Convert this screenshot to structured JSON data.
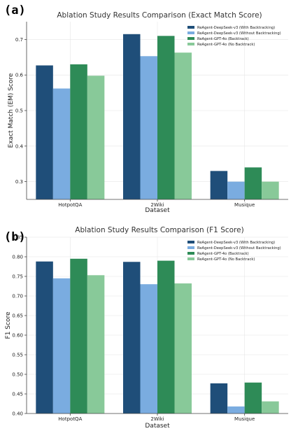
{
  "colors": [
    "#1f4e79",
    "#7aace0",
    "#2e8b57",
    "#88c999"
  ],
  "legend": [
    "ReAgent-DeepSeek-v3 (With Backtracking)",
    "ReAgent-DeepSeek-v3 (Without Backtracking)",
    "ReAgent-GPT-4o (Backtrack)",
    "ReAgent-GPT-4o (No Backtrack)"
  ],
  "chart_data": [
    {
      "type": "bar",
      "panel_label": "(a)",
      "title": "Ablation Study Results Comparison (Exact Match Score)",
      "xlabel": "Dataset",
      "ylabel": "Exact Match (EM) Score",
      "categories": [
        "HotpotQA",
        "2Wiki",
        "Musique"
      ],
      "ylim": [
        0.25,
        0.75
      ],
      "yticks": [
        "0.3",
        "0.4",
        "0.5",
        "0.6",
        "0.7"
      ],
      "grid": true,
      "legend_position": "top-right",
      "series": [
        {
          "name": "ReAgent-DeepSeek-v3 (With Backtracking)",
          "values": [
            0.627,
            0.715,
            0.33
          ]
        },
        {
          "name": "ReAgent-DeepSeek-v3 (Without Backtracking)",
          "values": [
            0.562,
            0.653,
            0.3
          ]
        },
        {
          "name": "ReAgent-GPT-4o (Backtrack)",
          "values": [
            0.63,
            0.71,
            0.34
          ]
        },
        {
          "name": "ReAgent-GPT-4o (No Backtrack)",
          "values": [
            0.598,
            0.663,
            0.3
          ]
        }
      ]
    },
    {
      "type": "bar",
      "panel_label": "(b)",
      "title": "Ablation Study Results Comparison (F1 Score)",
      "xlabel": "Dataset",
      "ylabel": "F1 Score",
      "categories": [
        "HotpotQA",
        "2Wiki",
        "Musique"
      ],
      "ylim": [
        0.4,
        0.85
      ],
      "yticks": [
        "0.40",
        "0.45",
        "0.50",
        "0.55",
        "0.60",
        "0.65",
        "0.70",
        "0.75",
        "0.80",
        "0.85"
      ],
      "grid": true,
      "legend_position": "top-right",
      "series": [
        {
          "name": "ReAgent-DeepSeek-v3 (With Backtracking)",
          "values": [
            0.788,
            0.787,
            0.477
          ]
        },
        {
          "name": "ReAgent-DeepSeek-v3 (Without Backtracking)",
          "values": [
            0.745,
            0.73,
            0.418
          ]
        },
        {
          "name": "ReAgent-GPT-4o (Backtrack)",
          "values": [
            0.795,
            0.79,
            0.479
          ]
        },
        {
          "name": "ReAgent-GPT-4o (No Backtrack)",
          "values": [
            0.753,
            0.732,
            0.431
          ]
        }
      ]
    }
  ]
}
